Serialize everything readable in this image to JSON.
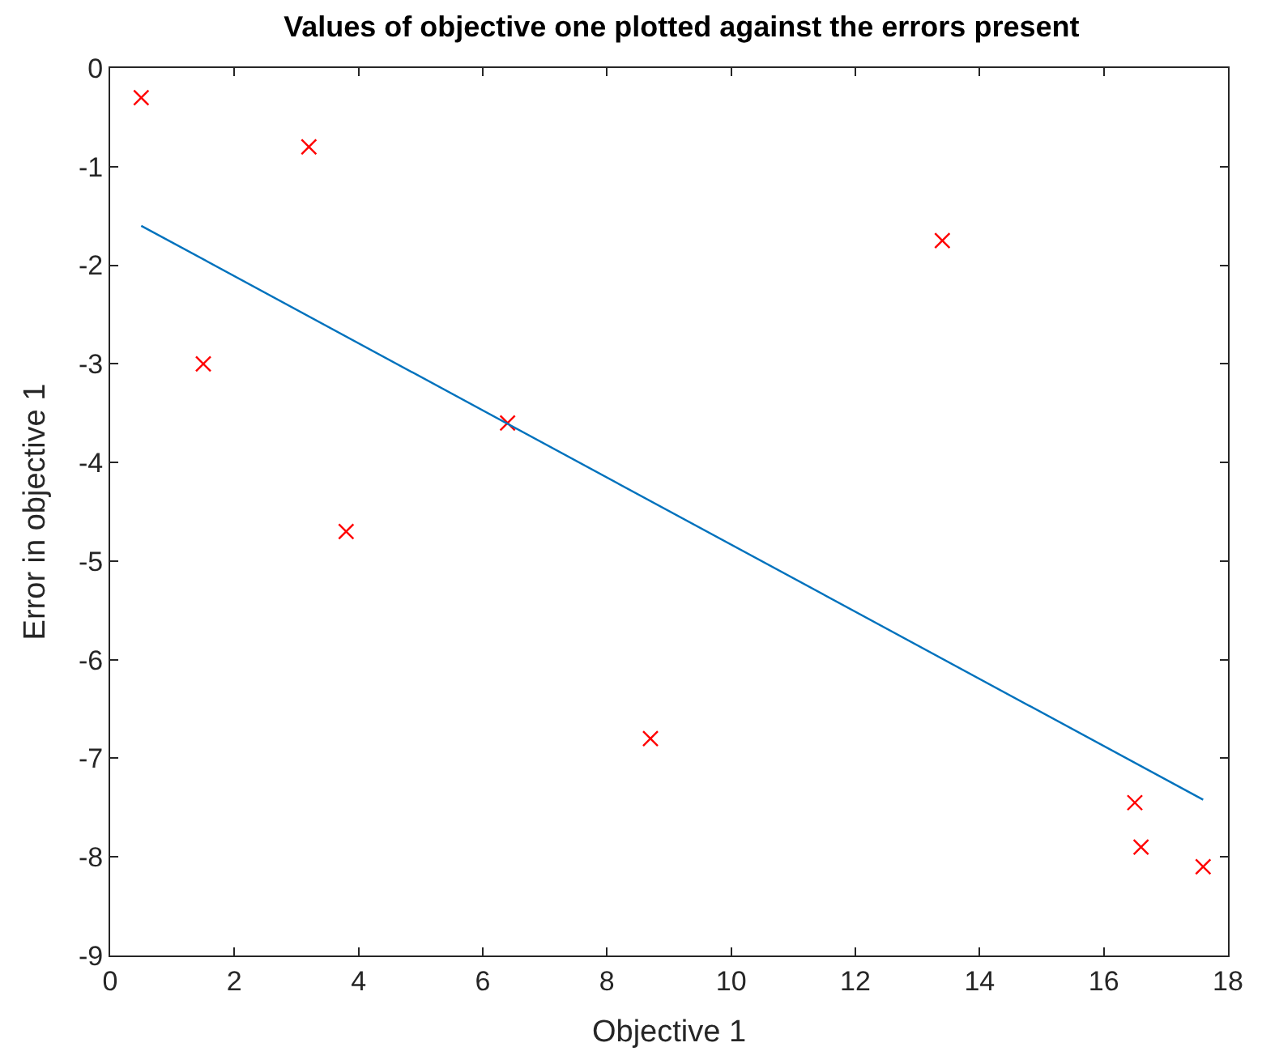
{
  "chart_data": {
    "type": "scatter",
    "title": "Values of objective one plotted against the errors present",
    "xlabel": "Objective 1",
    "ylabel": "Error in objective 1",
    "series": [
      {
        "color": "#ff0000",
        "marker": "cross",
        "x": [
          0.5,
          1.5,
          3.2,
          3.8,
          6.4,
          8.7,
          13.4,
          16.5,
          16.6,
          17.6
        ],
        "values": [
          -0.3,
          -3.0,
          -0.8,
          -4.7,
          -3.6,
          -6.8,
          -1.75,
          -7.45,
          -7.9,
          -8.1
        ]
      },
      {
        "type": "line",
        "color": "#0072bd",
        "marker": "none",
        "line_style": "solid",
        "x": [
          0.5,
          17.6
        ],
        "values": [
          -1.6,
          -7.42
        ]
      }
    ],
    "xlim": [
      0,
      18
    ],
    "xticks": [
      0,
      2,
      4,
      6,
      8,
      10,
      12,
      14,
      16,
      18
    ],
    "ylim": [
      -9,
      0
    ],
    "yticks": [
      -9,
      -8,
      -7,
      -6,
      -5,
      -4,
      -3,
      -2,
      -1,
      0
    ],
    "legend": false
  }
}
